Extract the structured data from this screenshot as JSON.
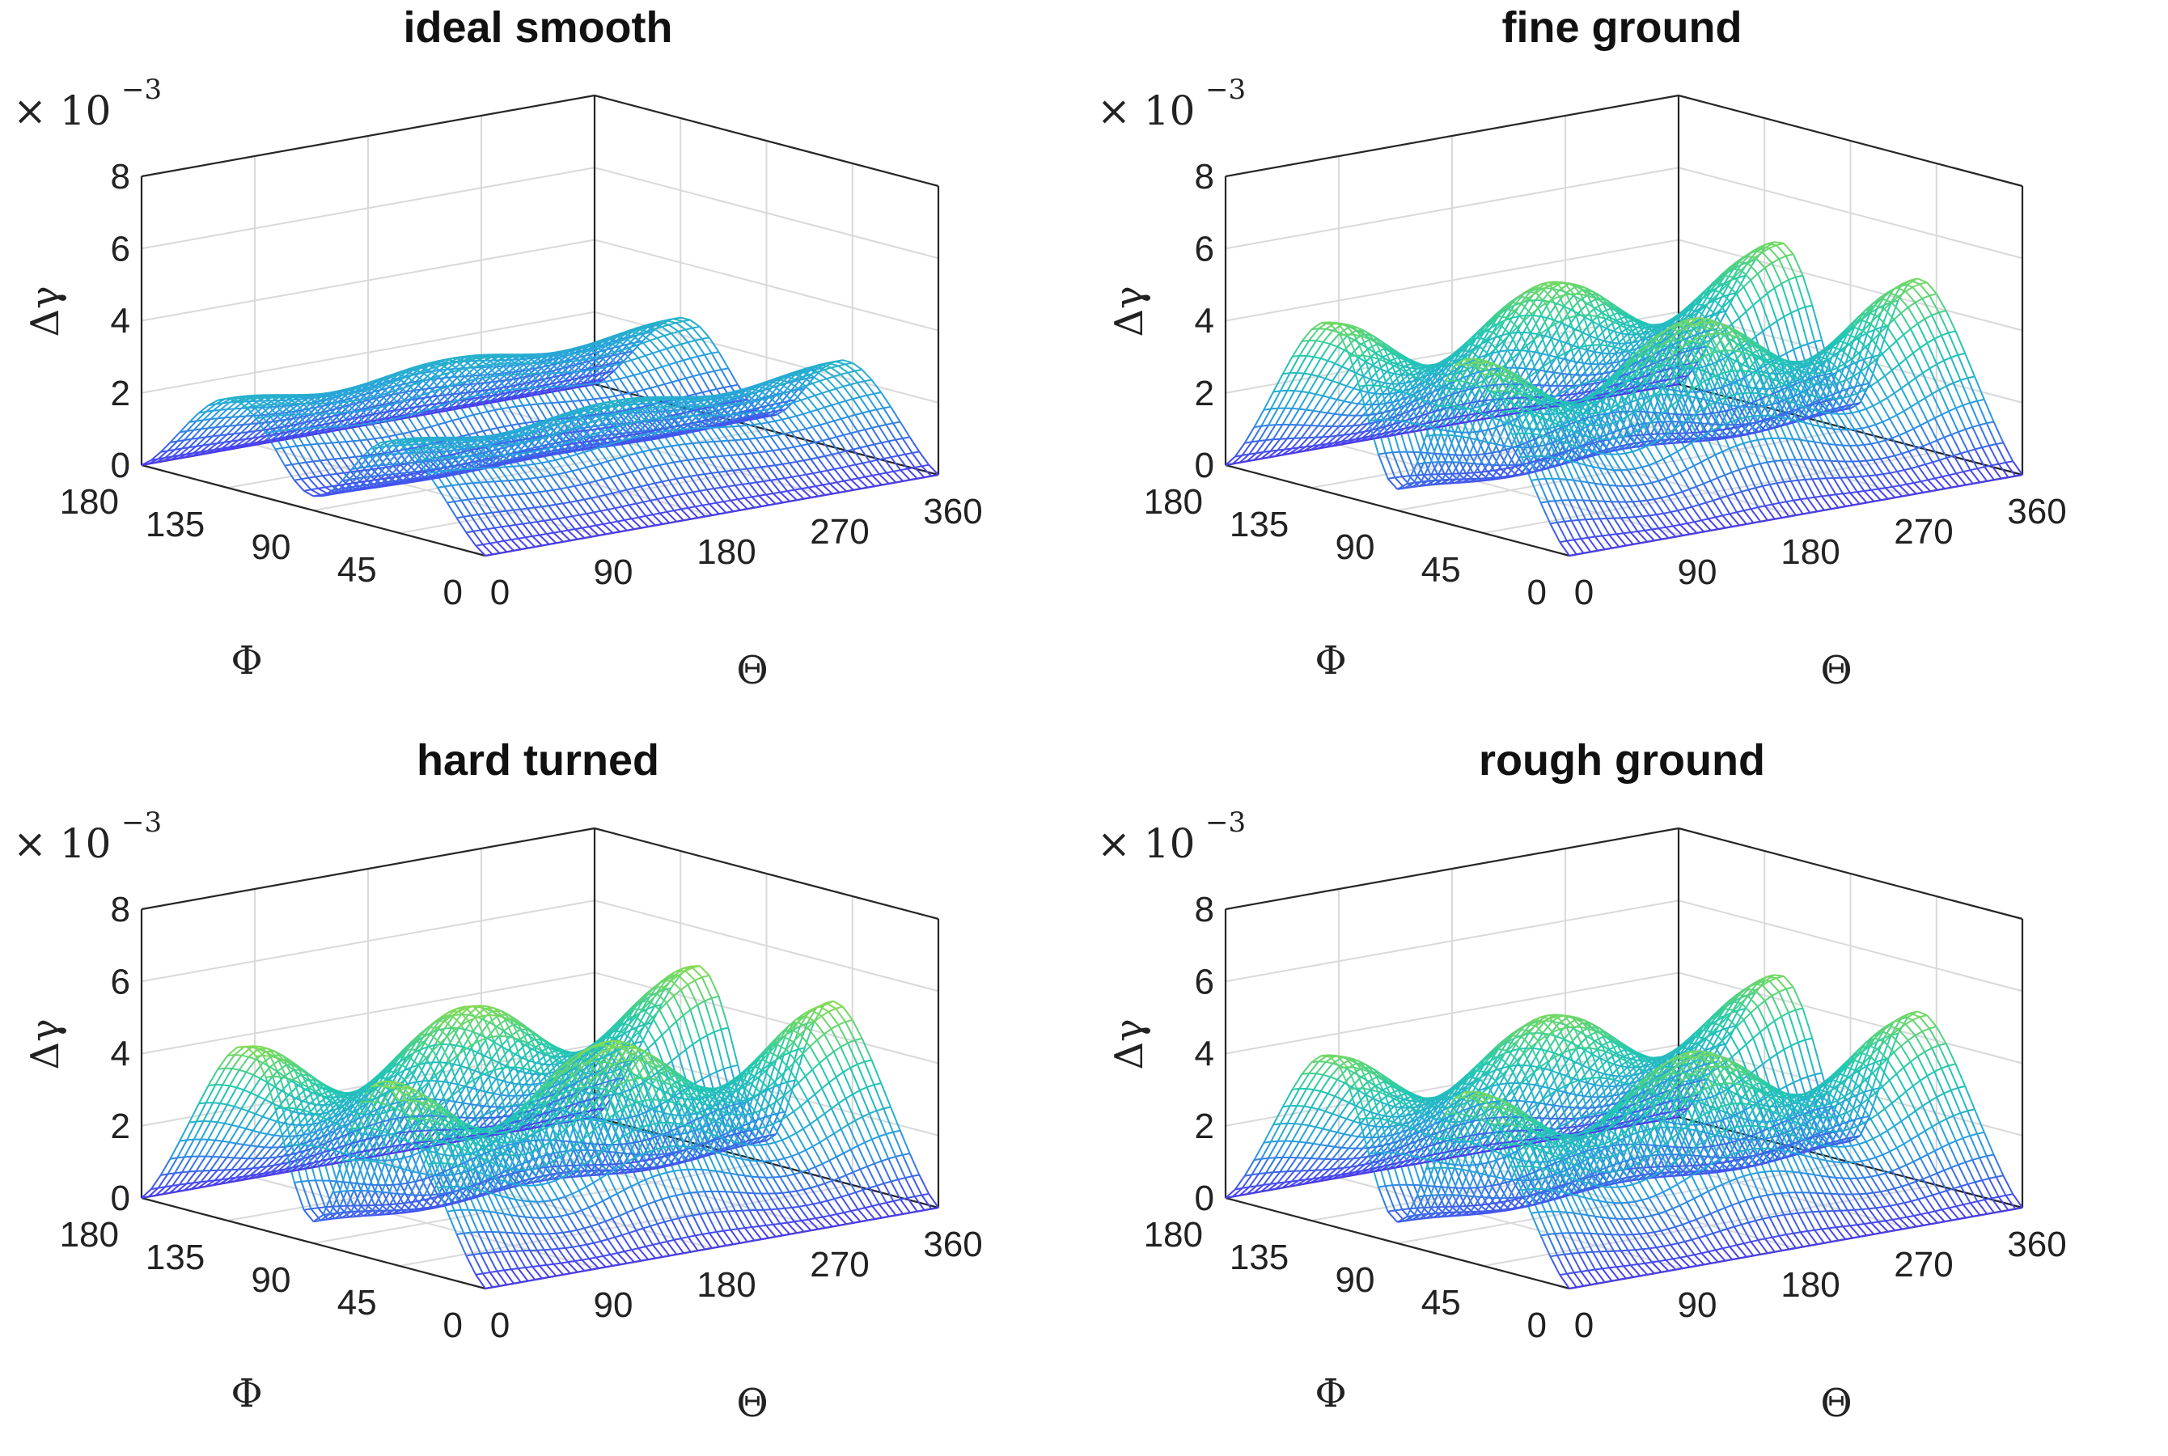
{
  "chart_data": [
    {
      "type": "surface",
      "title": "ideal smooth",
      "xlabel": "Θ",
      "ylabel": "Φ",
      "zlabel": "Δγ",
      "z_multiplier": "× 10",
      "z_multiplier_exp": "−3",
      "xlim": [
        0,
        360
      ],
      "ylim": [
        0,
        180
      ],
      "zlim": [
        0,
        8
      ],
      "xticks": [
        "0",
        "90",
        "180",
        "270",
        "360"
      ],
      "yticks": [
        "0",
        "45",
        "90",
        "135",
        "180"
      ],
      "zticks": [
        "0",
        "2",
        "4",
        "6",
        "8"
      ],
      "grid": true,
      "colormap": [
        "#4b3df0",
        "#2a9fe0",
        "#22c9b0",
        "#8fdd4a",
        "#f5e61c"
      ],
      "surface": {
        "ridge_amplitude": 4.2,
        "theta_modulation": 0.8,
        "valley_center_phi": 90,
        "valley_width_deg": 55
      }
    },
    {
      "type": "surface",
      "title": "fine ground",
      "xlabel": "Θ",
      "ylabel": "Φ",
      "zlabel": "Δγ",
      "z_multiplier": "× 10",
      "z_multiplier_exp": "−3",
      "xlim": [
        0,
        360
      ],
      "ylim": [
        0,
        180
      ],
      "zlim": [
        0,
        8
      ],
      "xticks": [
        "0",
        "90",
        "180",
        "270",
        "360"
      ],
      "yticks": [
        "0",
        "45",
        "90",
        "135",
        "180"
      ],
      "zticks": [
        "0",
        "2",
        "4",
        "6",
        "8"
      ],
      "grid": true,
      "colormap": [
        "#4b3df0",
        "#2a9fe0",
        "#22c9b0",
        "#8fdd4a",
        "#f5e61c"
      ],
      "surface": {
        "ridge_amplitude": 4.6,
        "theta_modulation": 3.0,
        "valley_center_phi": 90,
        "valley_width_deg": 40
      }
    },
    {
      "type": "surface",
      "title": "hard turned",
      "xlabel": "Θ",
      "ylabel": "Φ",
      "zlabel": "Δγ",
      "z_multiplier": "× 10",
      "z_multiplier_exp": "−3",
      "xlim": [
        0,
        360
      ],
      "ylim": [
        0,
        180
      ],
      "zlim": [
        0,
        8
      ],
      "xticks": [
        "0",
        "90",
        "180",
        "270",
        "360"
      ],
      "yticks": [
        "0",
        "45",
        "90",
        "135",
        "180"
      ],
      "zticks": [
        "0",
        "2",
        "4",
        "6",
        "8"
      ],
      "grid": true,
      "colormap": [
        "#4b3df0",
        "#2a9fe0",
        "#22c9b0",
        "#8fdd4a",
        "#f5e61c"
      ],
      "surface": {
        "ridge_amplitude": 4.7,
        "theta_modulation": 3.1,
        "valley_center_phi": 90,
        "valley_width_deg": 38
      }
    },
    {
      "type": "surface",
      "title": "rough ground",
      "xlabel": "Θ",
      "ylabel": "Φ",
      "zlabel": "Δγ",
      "z_multiplier": "× 10",
      "z_multiplier_exp": "−3",
      "xlim": [
        0,
        360
      ],
      "ylim": [
        0,
        180
      ],
      "zlim": [
        0,
        8
      ],
      "xticks": [
        "0",
        "90",
        "180",
        "270",
        "360"
      ],
      "yticks": [
        "0",
        "45",
        "90",
        "135",
        "180"
      ],
      "zticks": [
        "0",
        "2",
        "4",
        "6",
        "8"
      ],
      "grid": true,
      "colormap": [
        "#4b3df0",
        "#2a9fe0",
        "#22c9b0",
        "#8fdd4a",
        "#f5e61c"
      ],
      "surface": {
        "ridge_amplitude": 4.6,
        "theta_modulation": 3.0,
        "valley_center_phi": 90,
        "valley_width_deg": 40
      }
    }
  ]
}
